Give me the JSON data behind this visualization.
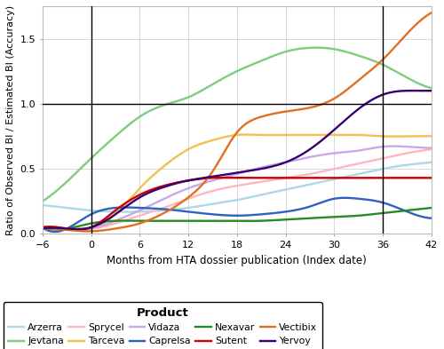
{
  "title": "",
  "xlabel": "Months from HTA dossier publication (Index date)",
  "ylabel": "Ratio of Observed BI / Estimated BI (Accuracy)",
  "xlim": [
    -6,
    42
  ],
  "ylim": [
    0.0,
    1.75
  ],
  "xticks": [
    -6,
    0,
    6,
    12,
    18,
    24,
    30,
    36,
    42
  ],
  "yticks": [
    0.0,
    0.5,
    1.0,
    1.5
  ],
  "vlines": [
    0,
    36
  ],
  "hlines": [
    1.0
  ],
  "products": {
    "Arzerra": {
      "color": "#ADD8E6",
      "x": [
        -6,
        -3,
        0,
        3,
        6,
        9,
        12,
        15,
        18,
        21,
        24,
        27,
        30,
        33,
        36,
        39,
        42
      ],
      "y": [
        0.22,
        0.2,
        0.18,
        0.17,
        0.17,
        0.18,
        0.2,
        0.23,
        0.26,
        0.3,
        0.34,
        0.38,
        0.42,
        0.46,
        0.5,
        0.53,
        0.55
      ]
    },
    "Jevtana": {
      "color": "#7CCD7C",
      "x": [
        -6,
        -3,
        0,
        3,
        6,
        9,
        12,
        15,
        18,
        21,
        24,
        27,
        30,
        33,
        36,
        39,
        42
      ],
      "y": [
        0.25,
        0.4,
        0.58,
        0.75,
        0.9,
        0.99,
        1.05,
        1.15,
        1.25,
        1.33,
        1.4,
        1.43,
        1.42,
        1.37,
        1.3,
        1.2,
        1.12
      ]
    },
    "Sprycel": {
      "color": "#FFB6C1",
      "x": [
        -6,
        -3,
        0,
        3,
        6,
        9,
        12,
        15,
        18,
        21,
        24,
        27,
        30,
        33,
        36,
        39,
        42
      ],
      "y": [
        0.05,
        0.04,
        0.04,
        0.08,
        0.14,
        0.2,
        0.27,
        0.33,
        0.37,
        0.4,
        0.43,
        0.46,
        0.5,
        0.54,
        0.58,
        0.62,
        0.65
      ]
    },
    "Tarceva": {
      "color": "#F0C050",
      "x": [
        -6,
        -3,
        0,
        3,
        6,
        9,
        12,
        15,
        18,
        21,
        24,
        27,
        30,
        33,
        36,
        39,
        42
      ],
      "y": [
        0.05,
        0.04,
        0.04,
        0.15,
        0.35,
        0.52,
        0.65,
        0.72,
        0.76,
        0.76,
        0.76,
        0.76,
        0.76,
        0.76,
        0.75,
        0.75,
        0.75
      ]
    },
    "Vidaza": {
      "color": "#C8A8E8",
      "x": [
        -6,
        -3,
        0,
        3,
        6,
        9,
        12,
        15,
        18,
        21,
        24,
        27,
        30,
        33,
        36,
        39,
        42
      ],
      "y": [
        0.05,
        0.04,
        0.04,
        0.1,
        0.18,
        0.27,
        0.35,
        0.41,
        0.46,
        0.51,
        0.55,
        0.59,
        0.62,
        0.64,
        0.67,
        0.67,
        0.66
      ]
    },
    "Caprelsa": {
      "color": "#3060C0",
      "x": [
        -6,
        -3,
        0,
        3,
        6,
        9,
        12,
        15,
        18,
        21,
        24,
        27,
        30,
        33,
        36,
        39,
        42
      ],
      "y": [
        0.05,
        0.04,
        0.15,
        0.2,
        0.2,
        0.19,
        0.17,
        0.15,
        0.14,
        0.15,
        0.17,
        0.21,
        0.27,
        0.27,
        0.24,
        0.17,
        0.12
      ]
    },
    "Nexavar": {
      "color": "#228B22",
      "x": [
        -6,
        -3,
        0,
        3,
        6,
        9,
        12,
        15,
        18,
        21,
        24,
        27,
        30,
        33,
        36,
        39,
        42
      ],
      "y": [
        0.05,
        0.04,
        0.08,
        0.1,
        0.1,
        0.1,
        0.1,
        0.1,
        0.1,
        0.1,
        0.11,
        0.12,
        0.13,
        0.14,
        0.16,
        0.18,
        0.2
      ]
    },
    "Sutent": {
      "color": "#CC0000",
      "x": [
        -6,
        -3,
        0,
        3,
        6,
        9,
        12,
        15,
        18,
        21,
        24,
        27,
        30,
        33,
        36,
        39,
        42
      ],
      "y": [
        0.05,
        0.04,
        0.05,
        0.18,
        0.3,
        0.37,
        0.41,
        0.43,
        0.43,
        0.43,
        0.43,
        0.43,
        0.43,
        0.43,
        0.43,
        0.43,
        0.43
      ]
    },
    "Vectibix": {
      "color": "#E07020",
      "x": [
        -6,
        -3,
        0,
        3,
        6,
        9,
        12,
        15,
        18,
        21,
        24,
        27,
        30,
        33,
        36,
        39,
        42
      ],
      "y": [
        0.04,
        0.03,
        0.02,
        0.04,
        0.08,
        0.16,
        0.28,
        0.48,
        0.78,
        0.9,
        0.94,
        0.97,
        1.04,
        1.18,
        1.34,
        1.54,
        1.7
      ]
    },
    "Yervoy": {
      "color": "#380070",
      "x": [
        -6,
        -3,
        0,
        3,
        6,
        9,
        12,
        15,
        18,
        21,
        24,
        27,
        30,
        33,
        36,
        39,
        42
      ],
      "y": [
        0.04,
        0.04,
        0.05,
        0.15,
        0.28,
        0.36,
        0.41,
        0.44,
        0.47,
        0.5,
        0.55,
        0.65,
        0.8,
        0.96,
        1.07,
        1.1,
        1.1
      ]
    }
  },
  "legend_label": "Product",
  "background_color": "#ffffff",
  "grid_color": "#d8d8d8"
}
